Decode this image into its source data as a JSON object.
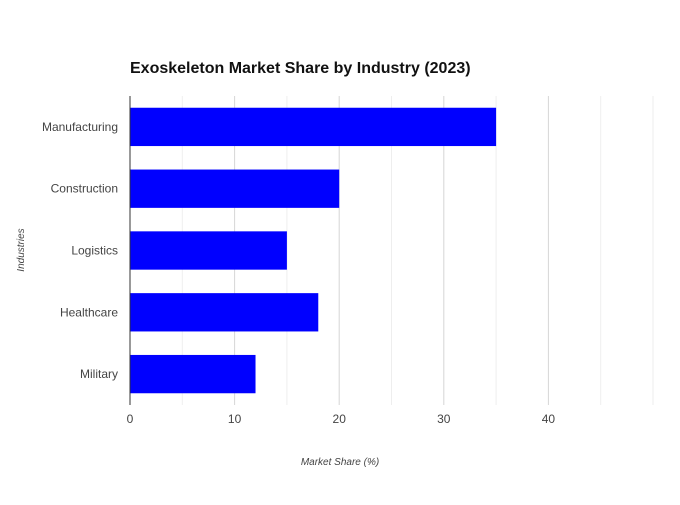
{
  "chart_data": {
    "type": "bar",
    "orientation": "horizontal",
    "title": "Exoskeleton Market Share by Industry (2023)",
    "xlabel": "Market Share (%)",
    "ylabel": "Industries",
    "categories": [
      "Manufacturing",
      "Construction",
      "Logistics",
      "Healthcare",
      "Military"
    ],
    "series": [
      {
        "values": [
          35,
          20,
          15,
          18,
          12
        ]
      }
    ],
    "xlim": [
      0,
      50
    ],
    "xticks": [
      0,
      10,
      20,
      30,
      40
    ],
    "grid": true,
    "bar_color": "#0000ff",
    "grid_color": "#dddddd",
    "axis_color": "#333333"
  }
}
